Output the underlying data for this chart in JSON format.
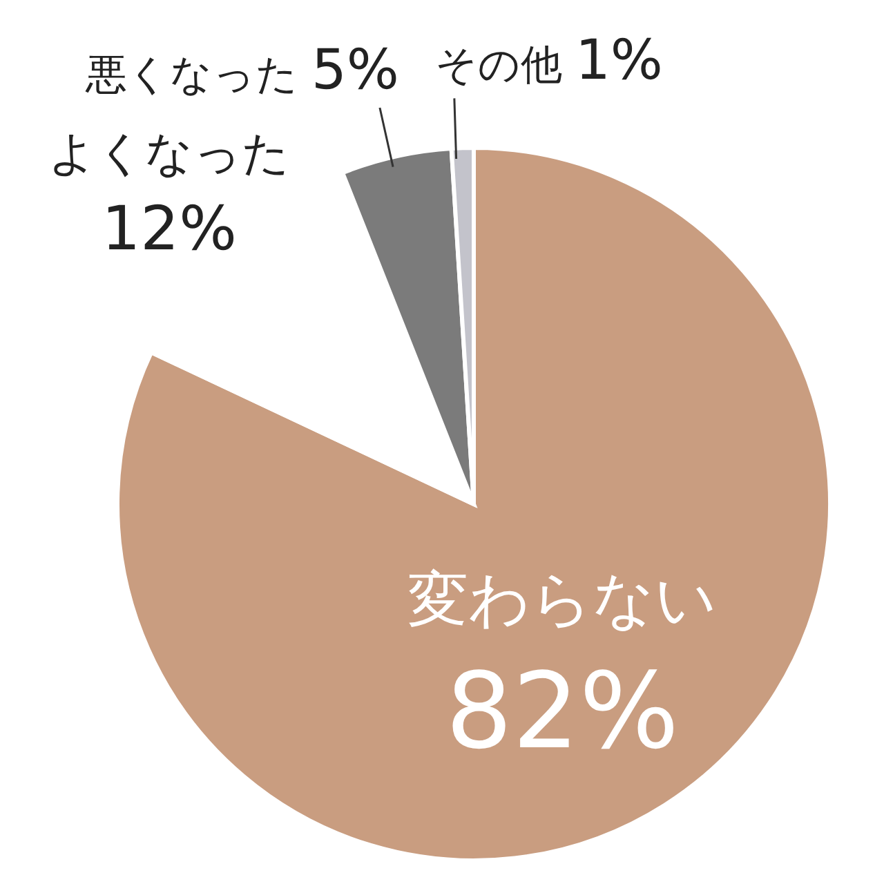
{
  "chart_data": {
    "type": "pie",
    "categories": [
      "変わらない",
      "よくなった",
      "悪くなった",
      "その他"
    ],
    "values": [
      82,
      12,
      5,
      1
    ],
    "value_labels": [
      "82%",
      "12%",
      "5%",
      "1%"
    ],
    "colors": [
      "#c99d80",
      "#ffffff",
      "#7b7b7b",
      "#c3c3cb"
    ]
  }
}
